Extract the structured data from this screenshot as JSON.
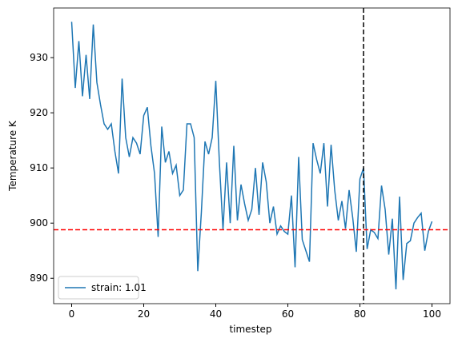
{
  "chart_data": {
    "type": "line",
    "x_label": "timestep",
    "y_label": "Temperature K",
    "x": [
      0,
      1,
      2,
      3,
      4,
      5,
      6,
      7,
      8,
      9,
      10,
      11,
      12,
      13,
      14,
      15,
      16,
      17,
      18,
      19,
      20,
      21,
      22,
      23,
      24,
      25,
      26,
      27,
      28,
      29,
      30,
      31,
      32,
      33,
      34,
      35,
      36,
      37,
      38,
      39,
      40,
      41,
      42,
      43,
      44,
      45,
      46,
      47,
      48,
      49,
      50,
      51,
      52,
      53,
      54,
      55,
      56,
      57,
      58,
      59,
      60,
      61,
      62,
      63,
      64,
      65,
      66,
      67,
      68,
      69,
      70,
      71,
      72,
      73,
      74,
      75,
      76,
      77,
      78,
      79,
      80,
      81,
      82,
      83,
      84,
      85,
      86,
      87,
      88,
      89,
      90,
      91,
      92,
      93,
      94,
      95,
      96,
      97,
      98,
      99,
      100
    ],
    "series": [
      {
        "name": "strain: 1.01",
        "color": "#1f77b4",
        "values": [
          936.5,
          924.5,
          933,
          923,
          930.5,
          922.5,
          936,
          925.5,
          921.5,
          918,
          917,
          918,
          913,
          909,
          926.2,
          915.5,
          912,
          915.5,
          914.5,
          912.5,
          919.5,
          921,
          914,
          909,
          897.5,
          917.5,
          911,
          913,
          909,
          910.5,
          905,
          906,
          918,
          918,
          915.5,
          891.3,
          902,
          914.8,
          912.5,
          915.5,
          925.8,
          911,
          898.8,
          911,
          900,
          914,
          900.5,
          907,
          903.5,
          900.5,
          902.5,
          910,
          901.5,
          911,
          907.5,
          900,
          903,
          898,
          899.5,
          898.5,
          898,
          905,
          892,
          912,
          897,
          895,
          893,
          914.5,
          911.5,
          909,
          914.5,
          903,
          914.2,
          906,
          900.5,
          904,
          899,
          906,
          901,
          894.8,
          908,
          910,
          895.3,
          898.8,
          898.3,
          897.2,
          906.8,
          902.5,
          894.3,
          900.8,
          888,
          904.8,
          889.7,
          896.3,
          896.8,
          900,
          901,
          901.8,
          895,
          898.5,
          900.3
        ]
      }
    ],
    "hlines": [
      {
        "value": 898.8,
        "color": "#ff0000"
      }
    ],
    "vlines": [
      {
        "value": 81,
        "color": "#000000"
      }
    ],
    "xlim": [
      -5,
      105
    ],
    "ylim": [
      885.4,
      939.0
    ],
    "xticks": [
      0,
      20,
      40,
      60,
      80,
      100
    ],
    "yticks": [
      890,
      900,
      910,
      920,
      930
    ],
    "legend": "lower left"
  }
}
